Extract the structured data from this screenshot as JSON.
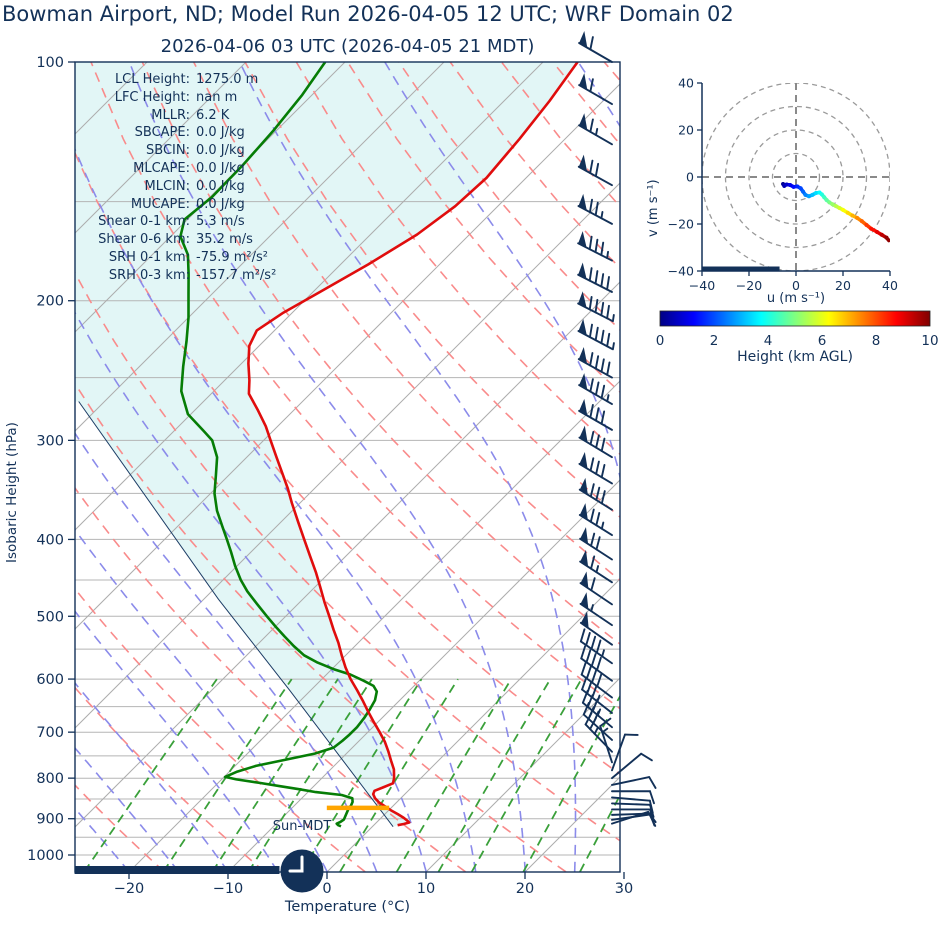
{
  "header": {
    "title": "Bowman Airport, ND; Model Run 2026-04-05 12 UTC; WRF Domain 02",
    "subtitle": "2026-04-06 03 UTC  (2026-04-05 21 MDT)"
  },
  "colors": {
    "navy": "#133158",
    "temp_red": "#e00d0d",
    "dewp_green": "#067d06",
    "parcel_line": "#1d3d66",
    "dry_adiabat": "#f98b8b",
    "moist_adiabat": "#8b8bea",
    "mixing_ratio": "#3aa03a",
    "isotherm_gray": "#adadad",
    "grid_gray": "#b5b5b5",
    "fill_cyan": "#e2f6f6",
    "lcl_orange": "#ffa500",
    "hodo_ring_gray": "#9a9a9a"
  },
  "stats": {
    "rows": [
      {
        "label": "LCL Height:",
        "value": "1275.0 m"
      },
      {
        "label": "LFC Height:",
        "value": "nan m"
      },
      {
        "label": "MLLR:",
        "value": "6.2 K"
      },
      {
        "label": "SBCAPE:",
        "value": "0.0 J/kg"
      },
      {
        "label": "SBCIN:",
        "value": "0.0 J/kg"
      },
      {
        "label": "MLCAPE:",
        "value": "0.0 J/kg"
      },
      {
        "label": "MLCIN:",
        "value": "0.0 J/kg"
      },
      {
        "label": "MUCAPE:",
        "value": "0.0 J/kg"
      },
      {
        "label": "Shear 0-1 km:",
        "value": "5.3 m/s"
      },
      {
        "label": "Shear 0-6 km:",
        "value": "35.2 m/s"
      },
      {
        "label": "SRH 0-1 km:",
        "value": "-75.9 m²/s²"
      },
      {
        "label": "SRH 0-3 km:",
        "value": "-157.7 m²/s²"
      }
    ]
  },
  "skewt_axes": {
    "xlabel": "Temperature (°C)",
    "ylabel": "Isobaric Height (hPa)",
    "sun_label": "Sun-MDT",
    "x_ticks": [
      -20,
      -10,
      0,
      10,
      20,
      30
    ],
    "y_ticks": [
      100,
      200,
      300,
      400,
      500,
      600,
      700,
      800,
      900,
      1000
    ]
  },
  "hodograph_axes": {
    "xlabel": "u (m s⁻¹)",
    "ylabel": "v (m s⁻¹)",
    "x_ticks": [
      -40,
      -20,
      0,
      20,
      40
    ],
    "y_ticks": [
      40,
      20,
      0,
      -20,
      -40
    ],
    "rings": [
      10,
      20,
      30,
      40
    ]
  },
  "colorbar": {
    "label": "Height (km AGL)",
    "ticks": [
      0,
      2,
      4,
      6,
      8,
      10
    ],
    "range": [
      0,
      10
    ],
    "colormap": "jet"
  },
  "chart_data": [
    {
      "type": "line",
      "name": "skewt_sounding",
      "title": "2026-04-06 03 UTC  (2026-04-05 21 MDT)",
      "xlabel": "Temperature (°C)",
      "ylabel": "Isobaric Height (hPa)",
      "pressure_range_hPa": [
        100,
        1050
      ],
      "surface_temp_range_C": [
        -25.5,
        29.6
      ],
      "grid": "on",
      "temperature_profile_p_T": [
        [
          100,
          -56.5
        ],
        [
          112,
          -55.4
        ],
        [
          125,
          -54.6
        ],
        [
          140,
          -54.0
        ],
        [
          152,
          -54.3
        ],
        [
          165,
          -55.3
        ],
        [
          180,
          -57.2
        ],
        [
          195,
          -59.3
        ],
        [
          207,
          -60.9
        ],
        [
          218,
          -61.8
        ],
        [
          228,
          -61.0
        ],
        [
          240,
          -59.3
        ],
        [
          252,
          -57.5
        ],
        [
          262,
          -56.2
        ],
        [
          275,
          -53.6
        ],
        [
          288,
          -51.2
        ],
        [
          300,
          -49.3
        ],
        [
          315,
          -47.0
        ],
        [
          330,
          -44.8
        ],
        [
          345,
          -42.7
        ],
        [
          360,
          -40.8
        ],
        [
          380,
          -38.3
        ],
        [
          400,
          -35.9
        ],
        [
          420,
          -33.6
        ],
        [
          440,
          -31.4
        ],
        [
          460,
          -29.4
        ],
        [
          480,
          -27.5
        ],
        [
          500,
          -25.6
        ],
        [
          520,
          -23.8
        ],
        [
          540,
          -22.0
        ],
        [
          560,
          -20.4
        ],
        [
          580,
          -18.8
        ],
        [
          600,
          -17.1
        ],
        [
          620,
          -15.3
        ],
        [
          640,
          -13.6
        ],
        [
          660,
          -12.0
        ],
        [
          680,
          -10.4
        ],
        [
          700,
          -8.8
        ],
        [
          720,
          -7.3
        ],
        [
          740,
          -6.0
        ],
        [
          760,
          -4.8
        ],
        [
          780,
          -3.6
        ],
        [
          800,
          -2.7
        ],
        [
          812,
          -2.3
        ],
        [
          822,
          -2.9
        ],
        [
          830,
          -3.4
        ],
        [
          838,
          -3.2
        ],
        [
          848,
          -2.6
        ],
        [
          858,
          -1.8
        ],
        [
          868,
          -0.8
        ],
        [
          878,
          0.2
        ],
        [
          888,
          1.3
        ],
        [
          898,
          2.3
        ],
        [
          906,
          3.0
        ],
        [
          910,
          3.3
        ],
        [
          914,
          2.9
        ],
        [
          917,
          2.4
        ]
      ],
      "dewpoint_profile_p_T": [
        [
          100,
          -82.0
        ],
        [
          110,
          -81.0
        ],
        [
          122,
          -80.3
        ],
        [
          135,
          -79.9
        ],
        [
          148,
          -79.8
        ],
        [
          158,
          -80.3
        ],
        [
          166,
          -79.0
        ],
        [
          175,
          -76.4
        ],
        [
          185,
          -74.4
        ],
        [
          196,
          -72.4
        ],
        [
          210,
          -70.0
        ],
        [
          225,
          -67.8
        ],
        [
          242,
          -65.6
        ],
        [
          260,
          -63.3
        ],
        [
          278,
          -60.3
        ],
        [
          292,
          -57.0
        ],
        [
          300,
          -55.2
        ],
        [
          315,
          -53.0
        ],
        [
          332,
          -51.3
        ],
        [
          350,
          -49.6
        ],
        [
          368,
          -47.6
        ],
        [
          385,
          -45.5
        ],
        [
          400,
          -43.7
        ],
        [
          415,
          -42.0
        ],
        [
          432,
          -40.2
        ],
        [
          450,
          -38.2
        ],
        [
          465,
          -36.4
        ],
        [
          482,
          -34.2
        ],
        [
          500,
          -31.9
        ],
        [
          515,
          -30.0
        ],
        [
          530,
          -28.1
        ],
        [
          545,
          -26.2
        ],
        [
          560,
          -24.2
        ],
        [
          572,
          -22.1
        ],
        [
          583,
          -19.8
        ],
        [
          592,
          -17.6
        ],
        [
          603,
          -15.6
        ],
        [
          612,
          -14.1
        ],
        [
          622,
          -13.2
        ],
        [
          638,
          -12.5
        ],
        [
          655,
          -12.1
        ],
        [
          672,
          -11.8
        ],
        [
          690,
          -11.6
        ],
        [
          705,
          -11.6
        ],
        [
          718,
          -11.7
        ],
        [
          732,
          -11.9
        ],
        [
          745,
          -13.2
        ],
        [
          758,
          -15.5
        ],
        [
          772,
          -17.9
        ],
        [
          785,
          -19.2
        ],
        [
          797,
          -19.9
        ],
        [
          803,
          -18.5
        ],
        [
          811,
          -15.8
        ],
        [
          819,
          -13.4
        ],
        [
          826,
          -11.2
        ],
        [
          833,
          -9.2
        ],
        [
          840,
          -6.3
        ],
        [
          848,
          -4.9
        ],
        [
          857,
          -4.5
        ],
        [
          866,
          -4.3
        ],
        [
          875,
          -4.2
        ],
        [
          884,
          -4.0
        ],
        [
          893,
          -3.8
        ],
        [
          902,
          -3.6
        ],
        [
          908,
          -3.7
        ],
        [
          913,
          -3.9
        ],
        [
          917,
          -3.6
        ],
        [
          920,
          -3.2
        ]
      ],
      "parcel_trace_p_T": [
        [
          921,
          2.1
        ],
        [
          620,
          -22.1
        ],
        [
          476,
          -38.5
        ],
        [
          268,
          -72.6
        ]
      ],
      "lcl_marker": {
        "pressure": 872,
        "t_from": -6.5,
        "t_to": -0.2
      },
      "wind_barbs_p_kt_dir": [
        [
          100,
          60,
          300
        ],
        [
          113,
          60,
          300
        ],
        [
          127,
          65,
          300
        ],
        [
          143,
          70,
          299
        ],
        [
          160,
          75,
          298
        ],
        [
          178,
          85,
          297
        ],
        [
          195,
          90,
          297
        ],
        [
          212,
          95,
          297
        ],
        [
          230,
          95,
          298
        ],
        [
          250,
          90,
          299
        ],
        [
          270,
          85,
          300
        ],
        [
          291,
          80,
          300
        ],
        [
          315,
          80,
          301
        ],
        [
          340,
          80,
          301
        ],
        [
          367,
          80,
          302
        ],
        [
          395,
          75,
          302
        ],
        [
          424,
          70,
          303
        ],
        [
          453,
          65,
          303
        ],
        [
          483,
          60,
          304
        ],
        [
          513,
          55,
          304
        ],
        [
          543,
          50,
          305
        ],
        [
          573,
          45,
          305
        ],
        [
          603,
          40,
          306
        ],
        [
          633,
          40,
          307
        ],
        [
          662,
          35,
          308
        ],
        [
          690,
          35,
          310
        ],
        [
          716,
          30,
          312
        ],
        [
          741,
          25,
          316
        ],
        [
          764,
          15,
          342
        ],
        [
          782,
          12,
          20
        ],
        [
          800,
          10,
          50
        ],
        [
          816,
          10,
          78
        ],
        [
          831,
          10,
          90
        ],
        [
          846,
          10,
          95
        ],
        [
          861,
          10,
          92
        ],
        [
          876,
          10,
          90
        ],
        [
          890,
          10,
          88
        ],
        [
          903,
          9,
          82
        ],
        [
          913,
          8,
          72
        ]
      ],
      "background_lines": {
        "isotherms_C": {
          "from": -110,
          "to": 40,
          "step": 10
        },
        "dry_adiabats_theta_C": {
          "from": -40,
          "to": 160,
          "step": 10
        },
        "moist_adiabats_base_C": {
          "from": -55,
          "to": 45,
          "step": 5
        },
        "mixing_ratio_g_kg": [
          0.5,
          1,
          1.5,
          2,
          3,
          4,
          6,
          8,
          10,
          14,
          20
        ],
        "pressure_gridlines_step_hPa": 50
      },
      "night_bar_temp_span": [
        -25.5,
        -4.8
      ],
      "clock_time_shown": "21:00"
    },
    {
      "type": "line",
      "name": "hodograph",
      "xlabel": "u (m s⁻¹)",
      "ylabel": "v (m s⁻¹)",
      "u_range": [
        -40,
        40
      ],
      "v_range": [
        -40,
        40
      ],
      "ground_bar_u_span": [
        -40,
        -7
      ],
      "trace_h_u_v": [
        [
          0.0,
          -5.5,
          -3.0
        ],
        [
          0.3,
          -5.0,
          -3.8
        ],
        [
          0.6,
          -4.0,
          -3.2
        ],
        [
          0.9,
          -2.5,
          -3.4
        ],
        [
          1.2,
          -1.0,
          -4.2
        ],
        [
          1.5,
          0.5,
          -4.0
        ],
        [
          1.8,
          2.0,
          -4.8
        ],
        [
          2.1,
          3.0,
          -6.2
        ],
        [
          2.4,
          4.0,
          -7.6
        ],
        [
          2.7,
          5.5,
          -8.2
        ],
        [
          3.0,
          7.0,
          -7.6
        ],
        [
          3.3,
          8.5,
          -6.8
        ],
        [
          3.6,
          10.0,
          -6.6
        ],
        [
          3.9,
          11.0,
          -7.4
        ],
        [
          4.2,
          12.0,
          -8.6
        ],
        [
          4.5,
          13.0,
          -9.8
        ],
        [
          4.8,
          14.2,
          -10.8
        ],
        [
          5.1,
          15.5,
          -11.6
        ],
        [
          5.4,
          17.0,
          -12.4
        ],
        [
          5.7,
          18.5,
          -13.2
        ],
        [
          6.0,
          20.0,
          -14.0
        ],
        [
          6.4,
          22.0,
          -15.2
        ],
        [
          6.8,
          24.0,
          -16.4
        ],
        [
          7.2,
          26.0,
          -17.4
        ],
        [
          7.6,
          28.0,
          -18.8
        ],
        [
          8.0,
          30.0,
          -20.4
        ],
        [
          8.4,
          32.0,
          -22.0
        ],
        [
          8.8,
          34.5,
          -23.4
        ],
        [
          9.2,
          36.5,
          -24.6
        ],
        [
          9.6,
          38.5,
          -25.8
        ],
        [
          10.0,
          39.5,
          -27.0
        ]
      ]
    },
    {
      "type": "colorbar",
      "name": "height_colorbar",
      "colormap": "jet",
      "range": [
        0,
        10
      ],
      "ticks": [
        0,
        2,
        4,
        6,
        8,
        10
      ],
      "label": "Height (km AGL)"
    }
  ]
}
